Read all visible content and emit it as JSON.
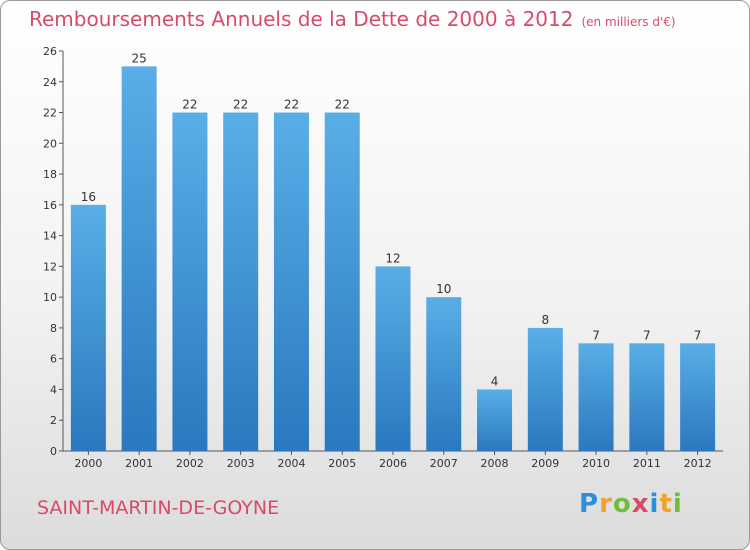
{
  "title": "Remboursements Annuels de la Dette de 2000 à 2012",
  "subtitle": "(en milliers d'€)",
  "commune": "SAINT-MARTIN-DE-GOYNE",
  "logo": {
    "letters": [
      {
        "ch": "P",
        "color": "#2e8fd8"
      },
      {
        "ch": "r",
        "color": "#f2a22a"
      },
      {
        "ch": "o",
        "color": "#6cbf3a"
      },
      {
        "ch": "x",
        "color": "#d94a6a"
      },
      {
        "ch": "i",
        "color": "#2e8fd8"
      },
      {
        "ch": "t",
        "color": "#f2a22a"
      },
      {
        "ch": "i",
        "color": "#6cbf3a"
      }
    ]
  },
  "colors": {
    "bar_light": "#5aaee6",
    "bar_dark": "#2a78be",
    "accent": "#d94a6a"
  },
  "chart_data": {
    "type": "bar",
    "categories": [
      "2000",
      "2001",
      "2002",
      "2003",
      "2004",
      "2005",
      "2006",
      "2007",
      "2008",
      "2009",
      "2010",
      "2011",
      "2012"
    ],
    "values": [
      16,
      25,
      22,
      22,
      22,
      22,
      12,
      10,
      4,
      8,
      7,
      7,
      7
    ],
    "ylim": [
      0,
      26
    ],
    "yticks": [
      0,
      2,
      4,
      6,
      8,
      10,
      12,
      14,
      16,
      18,
      20,
      22,
      24,
      26
    ],
    "grid": false,
    "data_labels": true
  }
}
